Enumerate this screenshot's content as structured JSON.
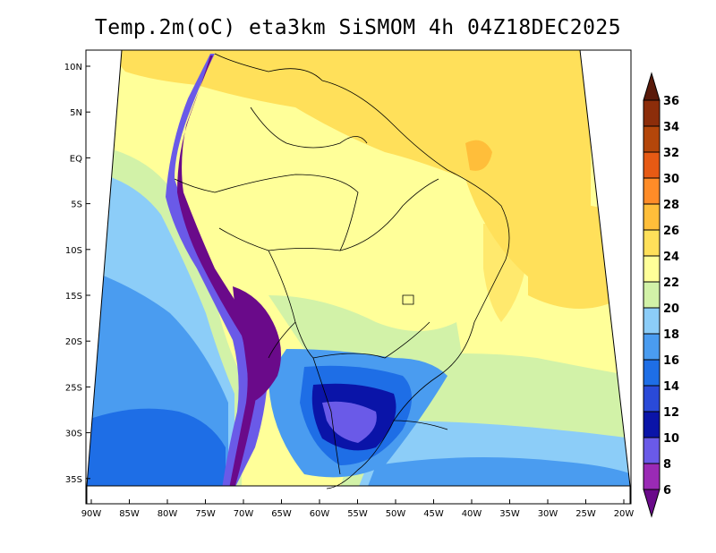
{
  "title": "Temp.2m(oC) eta3km SiSMOM 4h 04Z18DEC2025",
  "map": {
    "lat_ticks": [
      "10N",
      "5N",
      "EQ",
      "5S",
      "10S",
      "15S",
      "20S",
      "25S",
      "30S",
      "35S"
    ],
    "lon_ticks": [
      "90W",
      "85W",
      "80W",
      "75W",
      "70W",
      "65W",
      "60W",
      "55W",
      "50W",
      "45W",
      "40W",
      "35W",
      "30W",
      "25W",
      "20W"
    ],
    "lat_range": [
      12,
      -38
    ],
    "lon_range": [
      -91,
      -19
    ]
  },
  "colorbar": {
    "levels": [
      "6",
      "8",
      "10",
      "12",
      "14",
      "16",
      "18",
      "20",
      "22",
      "24",
      "26",
      "28",
      "30",
      "32",
      "34",
      "36"
    ],
    "colors": [
      "#6a0a8a",
      "#9a2ab5",
      "#6a5ae8",
      "#0a14a8",
      "#2a4ad8",
      "#1e6ee6",
      "#4a9cf0",
      "#8ccdf8",
      "#d2f2a8",
      "#ffff99",
      "#ffe05a",
      "#ffbe3a",
      "#ff8c28",
      "#e65a14",
      "#b4460a",
      "#8c2d0a",
      "#5a1a0a"
    ]
  }
}
